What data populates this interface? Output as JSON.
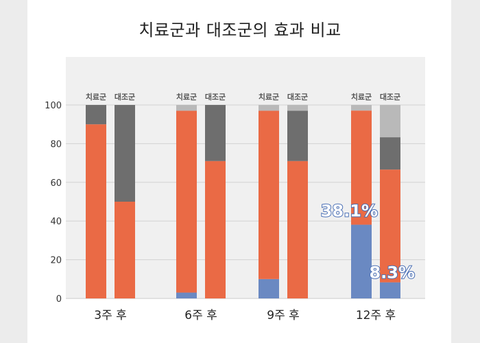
{
  "title": "치료군과 대조군의 효과 비교",
  "colors": {
    "blue": "#6a89c2",
    "orange": "#ea6a45",
    "darkgray": "#6e6e6e",
    "lightgray": "#b9b9b9"
  },
  "chart_data": {
    "type": "bar",
    "stacked": true,
    "categories": [
      "3주 후",
      "6주 후",
      "9주 후",
      "12주 후"
    ],
    "groups": [
      "치료군",
      "대조군"
    ],
    "ylim": [
      0,
      100
    ],
    "yticks": [
      0,
      20,
      40,
      60,
      80,
      100
    ],
    "grid": true,
    "segment_colors": [
      "#6a89c2",
      "#ea6a45",
      "#6e6e6e",
      "#b9b9b9"
    ],
    "bars": [
      {
        "category": "3주 후",
        "group": "치료군",
        "segments": [
          0,
          90,
          10,
          0
        ]
      },
      {
        "category": "3주 후",
        "group": "대조군",
        "segments": [
          0,
          50,
          50,
          0
        ]
      },
      {
        "category": "6주 후",
        "group": "치료군",
        "segments": [
          3,
          94,
          0,
          3
        ]
      },
      {
        "category": "6주 후",
        "group": "대조군",
        "segments": [
          0,
          71,
          29,
          0
        ]
      },
      {
        "category": "9주 후",
        "group": "치료군",
        "segments": [
          10,
          87,
          0,
          3
        ]
      },
      {
        "category": "9주 후",
        "group": "대조군",
        "segments": [
          0,
          71,
          26,
          3
        ]
      },
      {
        "category": "12주 후",
        "group": "치료군",
        "segments": [
          38.1,
          59,
          0,
          2.9
        ]
      },
      {
        "category": "12주 후",
        "group": "대조군",
        "segments": [
          8.3,
          58.3,
          16.7,
          16.7
        ]
      }
    ],
    "annotations": [
      {
        "text": "38.1%",
        "category": "12주 후",
        "group": "치료군",
        "value": 38.1
      },
      {
        "text": "8.3%",
        "category": "12주 후",
        "group": "대조군",
        "value": 8.3
      }
    ]
  }
}
